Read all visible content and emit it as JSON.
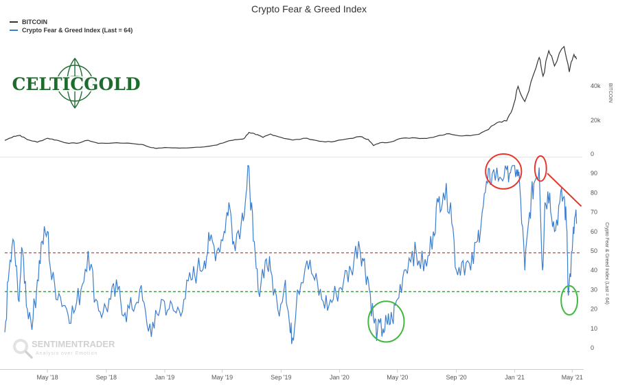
{
  "chart_data": {
    "type": "line",
    "title": "Crypto Fear & Greed Index",
    "legend": [
      "BITCOIN",
      "Crypto Fear & Greed Index (Last = 64)"
    ],
    "legend_placement": "top-left",
    "x_ticks": [
      "May '18",
      "Sep '18",
      "Jan '19",
      "May '19",
      "Sep '19",
      "Jan '20",
      "May '20",
      "Sep '20",
      "Jan '21",
      "May '21"
    ],
    "x_range": [
      "2018-02-01",
      "2021-05-12"
    ],
    "upper_panel": {
      "axis_title": "BITCOIN",
      "ticks": [
        "0",
        "20k",
        "40k"
      ],
      "ylim": [
        0,
        65000
      ],
      "series": [
        {
          "name": "BITCOIN",
          "color": "#333333",
          "points": [
            [
              "2018-02-01",
              8000
            ],
            [
              "2018-02-20",
              10500
            ],
            [
              "2018-03-05",
              11000
            ],
            [
              "2018-03-20",
              8500
            ],
            [
              "2018-04-10",
              7000
            ],
            [
              "2018-05-01",
              9300
            ],
            [
              "2018-05-20",
              8200
            ],
            [
              "2018-06-10",
              6500
            ],
            [
              "2018-07-01",
              6300
            ],
            [
              "2018-07-25",
              8100
            ],
            [
              "2018-08-15",
              6300
            ],
            [
              "2018-09-15",
              6500
            ],
            [
              "2018-10-15",
              6450
            ],
            [
              "2018-11-15",
              5600
            ],
            [
              "2018-12-01",
              4000
            ],
            [
              "2018-12-15",
              3300
            ],
            [
              "2019-01-01",
              3800
            ],
            [
              "2019-02-01",
              3450
            ],
            [
              "2019-03-01",
              3800
            ],
            [
              "2019-04-01",
              4500
            ],
            [
              "2019-04-20",
              5300
            ],
            [
              "2019-05-15",
              7800
            ],
            [
              "2019-06-01",
              8500
            ],
            [
              "2019-06-15",
              9000
            ],
            [
              "2019-06-26",
              12800
            ],
            [
              "2019-07-10",
              11500
            ],
            [
              "2019-07-25",
              9800
            ],
            [
              "2019-08-10",
              11800
            ],
            [
              "2019-09-01",
              9800
            ],
            [
              "2019-09-25",
              8200
            ],
            [
              "2019-10-25",
              9300
            ],
            [
              "2019-11-20",
              7500
            ],
            [
              "2019-12-15",
              7100
            ],
            [
              "2020-01-15",
              8800
            ],
            [
              "2020-02-13",
              10300
            ],
            [
              "2020-03-01",
              8600
            ],
            [
              "2020-03-12",
              5000
            ],
            [
              "2020-03-25",
              6600
            ],
            [
              "2020-04-15",
              7000
            ],
            [
              "2020-05-05",
              9000
            ],
            [
              "2020-06-01",
              9600
            ],
            [
              "2020-07-01",
              9200
            ],
            [
              "2020-07-28",
              11000
            ],
            [
              "2020-08-17",
              12000
            ],
            [
              "2020-09-15",
              10700
            ],
            [
              "2020-10-15",
              11500
            ],
            [
              "2020-11-01",
              13800
            ],
            [
              "2020-11-25",
              18500
            ],
            [
              "2020-12-15",
              19500
            ],
            [
              "2020-12-27",
              26500
            ],
            [
              "2021-01-08",
              40000
            ],
            [
              "2021-01-22",
              31000
            ],
            [
              "2021-02-08",
              46000
            ],
            [
              "2021-02-21",
              57000
            ],
            [
              "2021-03-01",
              46000
            ],
            [
              "2021-03-13",
              61000
            ],
            [
              "2021-03-25",
              52000
            ],
            [
              "2021-04-14",
              63500
            ],
            [
              "2021-04-25",
              48500
            ],
            [
              "2021-05-03",
              57500
            ],
            [
              "2021-05-10",
              56000
            ]
          ]
        }
      ]
    },
    "lower_panel": {
      "axis_title": "Crypto Fear & Greed Index (Last = 64)",
      "ticks": [
        "0",
        "10",
        "20",
        "30",
        "40",
        "50",
        "60",
        "70",
        "80",
        "90"
      ],
      "ylim": [
        -5,
        95
      ],
      "series": [
        {
          "name": "Crypto Fear & Greed Index (Last = 64)",
          "color": "#3a7dce",
          "points": [
            [
              "2018-02-01",
              8
            ],
            [
              "2018-02-10",
              40
            ],
            [
              "2018-02-20",
              55
            ],
            [
              "2018-03-01",
              25
            ],
            [
              "2018-03-10",
              50
            ],
            [
              "2018-03-20",
              20
            ],
            [
              "2018-04-01",
              15
            ],
            [
              "2018-04-10",
              35
            ],
            [
              "2018-04-20",
              55
            ],
            [
              "2018-05-01",
              60
            ],
            [
              "2018-05-10",
              35
            ],
            [
              "2018-05-25",
              28
            ],
            [
              "2018-06-10",
              20
            ],
            [
              "2018-06-25",
              18
            ],
            [
              "2018-07-10",
              30
            ],
            [
              "2018-07-25",
              50
            ],
            [
              "2018-08-10",
              25
            ],
            [
              "2018-08-25",
              18
            ],
            [
              "2018-09-10",
              25
            ],
            [
              "2018-09-25",
              30
            ],
            [
              "2018-10-10",
              18
            ],
            [
              "2018-10-25",
              20
            ],
            [
              "2018-11-10",
              30
            ],
            [
              "2018-11-25",
              12
            ],
            [
              "2018-12-10",
              10
            ],
            [
              "2018-12-25",
              25
            ],
            [
              "2019-01-10",
              20
            ],
            [
              "2019-01-25",
              18
            ],
            [
              "2019-02-10",
              25
            ],
            [
              "2019-02-25",
              35
            ],
            [
              "2019-03-10",
              40
            ],
            [
              "2019-03-25",
              45
            ],
            [
              "2019-04-05",
              55
            ],
            [
              "2019-04-20",
              50
            ],
            [
              "2019-05-05",
              60
            ],
            [
              "2019-05-15",
              75
            ],
            [
              "2019-05-25",
              55
            ],
            [
              "2019-06-10",
              65
            ],
            [
              "2019-06-20",
              80
            ],
            [
              "2019-06-26",
              93
            ],
            [
              "2019-07-05",
              55
            ],
            [
              "2019-07-15",
              30
            ],
            [
              "2019-07-30",
              45
            ],
            [
              "2019-08-10",
              40
            ],
            [
              "2019-08-25",
              20
            ],
            [
              "2019-09-10",
              35
            ],
            [
              "2019-09-20",
              8
            ],
            [
              "2019-09-25",
              5
            ],
            [
              "2019-10-05",
              30
            ],
            [
              "2019-10-25",
              45
            ],
            [
              "2019-11-10",
              35
            ],
            [
              "2019-11-25",
              25
            ],
            [
              "2019-12-10",
              22
            ],
            [
              "2019-12-25",
              28
            ],
            [
              "2020-01-10",
              35
            ],
            [
              "2020-01-25",
              40
            ],
            [
              "2020-02-10",
              55
            ],
            [
              "2020-02-20",
              45
            ],
            [
              "2020-03-01",
              35
            ],
            [
              "2020-03-12",
              15
            ],
            [
              "2020-03-20",
              8
            ],
            [
              "2020-04-01",
              10
            ],
            [
              "2020-04-10",
              12
            ],
            [
              "2020-04-20",
              15
            ],
            [
              "2020-05-01",
              25
            ],
            [
              "2020-05-15",
              40
            ],
            [
              "2020-06-01",
              50
            ],
            [
              "2020-06-15",
              45
            ],
            [
              "2020-07-01",
              42
            ],
            [
              "2020-07-15",
              60
            ],
            [
              "2020-07-25",
              75
            ],
            [
              "2020-08-05",
              80
            ],
            [
              "2020-08-20",
              75
            ],
            [
              "2020-09-01",
              40
            ],
            [
              "2020-09-15",
              45
            ],
            [
              "2020-10-01",
              40
            ],
            [
              "2020-10-15",
              55
            ],
            [
              "2020-10-25",
              70
            ],
            [
              "2020-11-05",
              85
            ],
            [
              "2020-11-15",
              90
            ],
            [
              "2020-12-01",
              88
            ],
            [
              "2020-12-15",
              92
            ],
            [
              "2020-12-25",
              93
            ],
            [
              "2021-01-05",
              92
            ],
            [
              "2021-01-11",
              85
            ],
            [
              "2021-01-22",
              40
            ],
            [
              "2021-02-01",
              70
            ],
            [
              "2021-02-10",
              85
            ],
            [
              "2021-02-21",
              93
            ],
            [
              "2021-02-28",
              40
            ],
            [
              "2021-03-05",
              75
            ],
            [
              "2021-03-15",
              80
            ],
            [
              "2021-03-25",
              60
            ],
            [
              "2021-04-05",
              75
            ],
            [
              "2021-04-14",
              78
            ],
            [
              "2021-04-20",
              60
            ],
            [
              "2021-04-23",
              27
            ],
            [
              "2021-05-01",
              50
            ],
            [
              "2021-05-07",
              68
            ],
            [
              "2021-05-10",
              64
            ]
          ]
        }
      ],
      "reference_lines": [
        {
          "y": 49,
          "color": "#b03030",
          "style": "dashed"
        },
        {
          "y": 29,
          "color": "#2e8b2e",
          "style": "dashed"
        }
      ],
      "annotations": {
        "red_circles": [
          {
            "x": [
              "2020-11-01",
              "2021-01-15"
            ],
            "y": [
              82,
              100
            ],
            "color": "#e8352a"
          },
          {
            "x": [
              "2021-02-12",
              "2021-03-08"
            ],
            "y": [
              86,
              99
            ],
            "color": "#e8352a"
          }
        ],
        "red_arrow": {
          "from": [
            "2021-03-10",
            90
          ],
          "to": [
            "2021-05-20",
            73
          ],
          "color": "#e8352a"
        },
        "green_circles": [
          {
            "x": [
              "2020-03-01",
              "2020-05-15"
            ],
            "y": [
              3,
              24
            ],
            "color": "#3fb83f"
          },
          {
            "x": [
              "2021-04-08",
              "2021-05-12"
            ],
            "y": [
              17,
              32
            ],
            "color": "#3fb83f"
          }
        ]
      }
    }
  },
  "logo": {
    "text": "CELTICGOLD",
    "color": "#1e6b2e",
    "bg": "#ffffff"
  },
  "watermark": {
    "name": "SENTIMENTRADER",
    "tagline": "Analysis over Emotion"
  }
}
